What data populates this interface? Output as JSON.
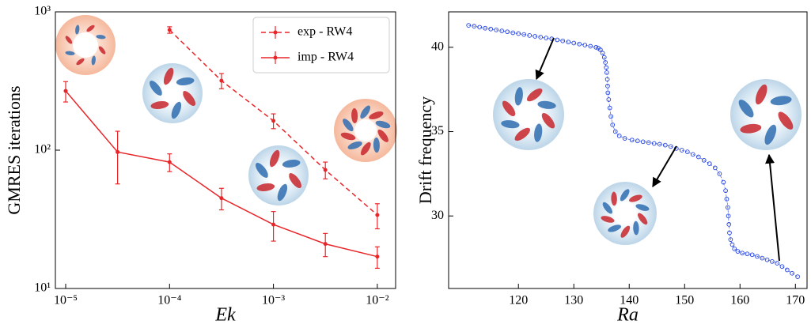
{
  "chart_data": [
    {
      "type": "line",
      "xscale": "log",
      "yscale": "log",
      "xlabel": "Ek",
      "ylabel": "GMRES iterations",
      "xlim": [
        7.96e-06,
        0.015
      ],
      "ylim": [
        10,
        1000
      ],
      "xticks": [
        {
          "value": 1e-05,
          "label": "10⁻⁵"
        },
        {
          "value": 0.0001,
          "label": "10⁻⁴"
        },
        {
          "value": 0.001,
          "label": "10⁻³"
        },
        {
          "value": 0.01,
          "label": "10⁻²"
        }
      ],
      "yticks": [
        {
          "value": 10,
          "label": "10¹"
        },
        {
          "value": 100,
          "label": "10²"
        },
        {
          "value": 1000,
          "label": "10³"
        }
      ],
      "legend": "upper right",
      "series": [
        {
          "name": "exp - RW4",
          "color": "#e8262a",
          "linestyle": "dashed",
          "x": [
            0.0001,
            0.000316,
            0.001,
            0.00316,
            0.01
          ],
          "values": [
            740,
            318,
            163,
            72,
            34
          ],
          "errors": [
            40,
            40,
            20,
            10,
            7
          ]
        },
        {
          "name": "imp - RW4",
          "color": "#e8262a",
          "linestyle": "solid",
          "x": [
            1e-05,
            3.16e-05,
            0.0001,
            0.000316,
            0.001,
            0.00316,
            0.01
          ],
          "values": [
            268,
            97,
            82,
            45,
            29,
            21,
            17
          ],
          "errors": [
            45,
            40,
            12,
            8,
            7,
            4,
            3
          ]
        }
      ]
    },
    {
      "type": "scatter",
      "xlabel": "Ra",
      "ylabel": "Drift frequency",
      "xlim": [
        107.4,
        172.1
      ],
      "ylim": [
        25.7,
        42.1
      ],
      "xticks": [
        120,
        130,
        140,
        150,
        160,
        170
      ],
      "yticks": [
        30,
        35,
        40
      ],
      "color": "#1f3fe0",
      "x": [
        111,
        112,
        113,
        114,
        115,
        116,
        117,
        118,
        119,
        120,
        121,
        122,
        123,
        124,
        125,
        126,
        127,
        128,
        129,
        130,
        131,
        132,
        133,
        134,
        134.4,
        134.8,
        135.2,
        135.5,
        135.7,
        135.85,
        135.95,
        136.05,
        136.1,
        136.15,
        136.3,
        136.5,
        136.7,
        137.0,
        137.5,
        138.2,
        139.2,
        140.5,
        141.5,
        142.5,
        143.5,
        144.5,
        145.5,
        146.5,
        147.5,
        148.5,
        149.5,
        150.5,
        151.5,
        152.5,
        153.5,
        154.5,
        155.5,
        156.3,
        157.0,
        157.4,
        157.6,
        157.8,
        157.9,
        158.0,
        158.1,
        158.3,
        158.6,
        159.0,
        159.6,
        160.4,
        161.3,
        162.2,
        163.1,
        164.0,
        164.9,
        165.8,
        166.7,
        167.6,
        168.5,
        169.4,
        170.4
      ],
      "values": [
        41.3,
        41.25,
        41.19,
        41.13,
        41.08,
        41.03,
        40.97,
        40.92,
        40.86,
        40.81,
        40.76,
        40.7,
        40.65,
        40.6,
        40.55,
        40.5,
        40.44,
        40.38,
        40.31,
        40.25,
        40.19,
        40.13,
        40.06,
        40.0,
        39.95,
        39.85,
        39.65,
        39.4,
        39.1,
        38.8,
        38.5,
        38.1,
        37.7,
        37.3,
        36.9,
        36.4,
        35.9,
        35.4,
        35.0,
        34.75,
        34.6,
        34.5,
        34.45,
        34.4,
        34.35,
        34.3,
        34.25,
        34.2,
        34.12,
        34.0,
        33.9,
        33.8,
        33.65,
        33.5,
        33.3,
        33.1,
        32.85,
        32.5,
        32.0,
        31.5,
        31.0,
        30.5,
        30.0,
        29.5,
        29.0,
        28.6,
        28.3,
        28.05,
        27.9,
        27.8,
        27.75,
        27.7,
        27.6,
        27.5,
        27.4,
        27.3,
        27.2,
        27.0,
        26.8,
        26.6,
        26.4
      ]
    }
  ]
}
